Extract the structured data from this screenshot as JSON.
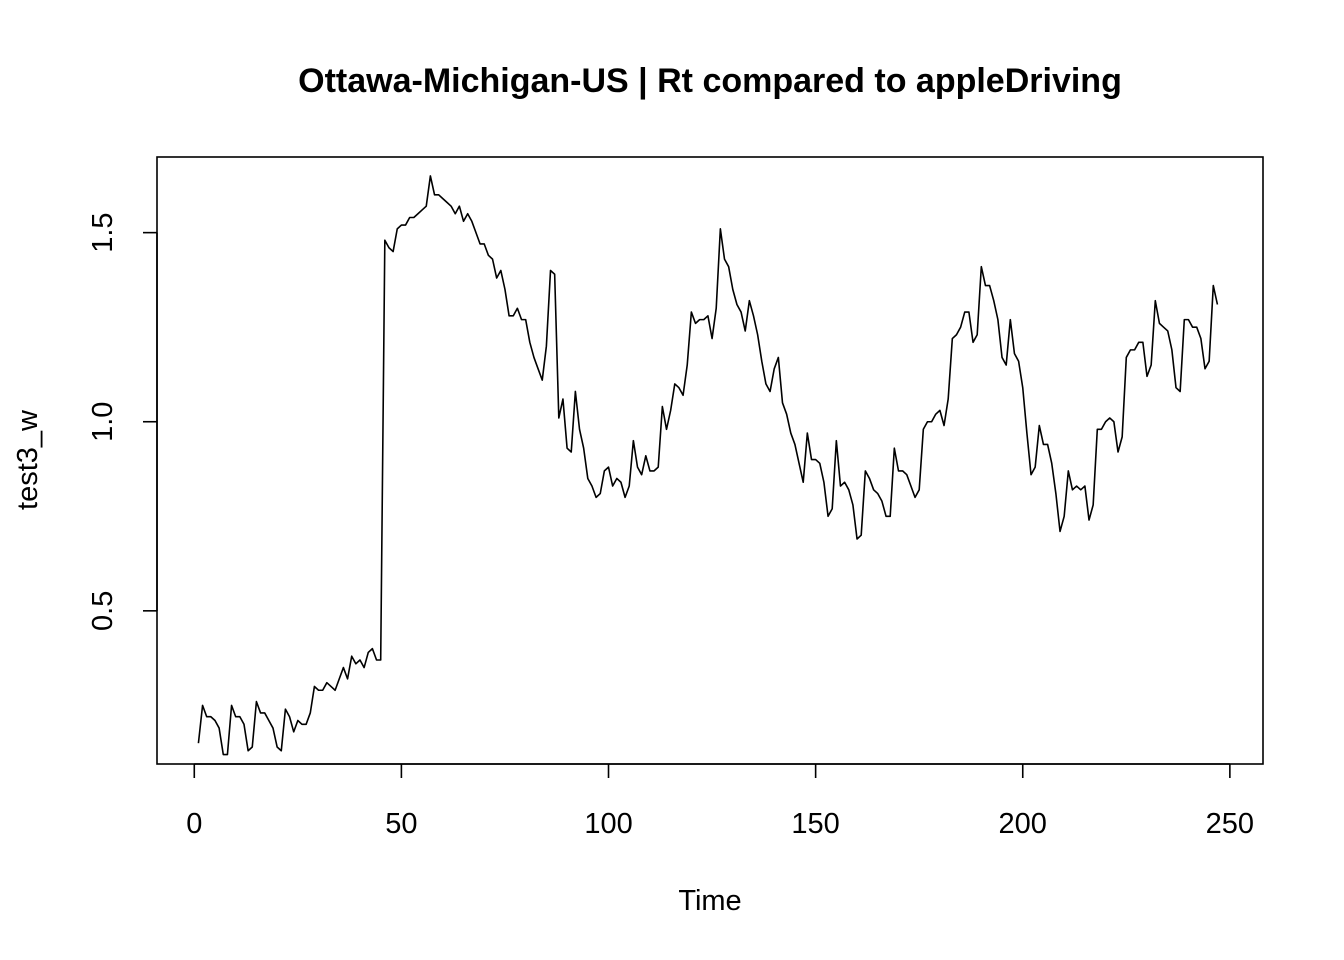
{
  "chart_data": {
    "type": "line",
    "title": "Ottawa-Michigan-US | Rt compared to appleDriving",
    "xlabel": "Time",
    "ylabel": "test3_w",
    "xlim": [
      -9,
      258
    ],
    "ylim": [
      0.095,
      1.7
    ],
    "x_ticks": [
      0,
      50,
      100,
      150,
      200,
      250
    ],
    "x_tick_labels": [
      "0",
      "50",
      "100",
      "150",
      "200",
      "250"
    ],
    "y_ticks": [
      0.5,
      1.0,
      1.5
    ],
    "y_tick_labels": [
      "0.5",
      "1.0",
      "1.5"
    ],
    "grid": false,
    "legend": "none",
    "line_color": "#000000",
    "series": [
      {
        "x_start": 1,
        "values": [
          0.15,
          0.25,
          0.22,
          0.22,
          0.21,
          0.19,
          0.12,
          0.12,
          0.25,
          0.22,
          0.22,
          0.2,
          0.13,
          0.14,
          0.26,
          0.23,
          0.23,
          0.21,
          0.19,
          0.14,
          0.13,
          0.24,
          0.22,
          0.18,
          0.21,
          0.2,
          0.2,
          0.23,
          0.3,
          0.29,
          0.29,
          0.31,
          0.3,
          0.29,
          0.32,
          0.35,
          0.32,
          0.38,
          0.36,
          0.37,
          0.35,
          0.39,
          0.4,
          0.37,
          0.37,
          1.48,
          1.46,
          1.45,
          1.51,
          1.52,
          1.52,
          1.54,
          1.54,
          1.55,
          1.56,
          1.57,
          1.65,
          1.6,
          1.6,
          1.59,
          1.58,
          1.57,
          1.55,
          1.57,
          1.53,
          1.55,
          1.53,
          1.5,
          1.47,
          1.47,
          1.44,
          1.43,
          1.38,
          1.4,
          1.35,
          1.28,
          1.28,
          1.3,
          1.27,
          1.27,
          1.21,
          1.17,
          1.14,
          1.11,
          1.2,
          1.4,
          1.39,
          1.01,
          1.06,
          0.93,
          0.92,
          1.08,
          0.98,
          0.93,
          0.85,
          0.83,
          0.8,
          0.81,
          0.87,
          0.88,
          0.83,
          0.85,
          0.84,
          0.8,
          0.83,
          0.95,
          0.88,
          0.86,
          0.91,
          0.87,
          0.87,
          0.88,
          1.04,
          0.98,
          1.03,
          1.1,
          1.09,
          1.07,
          1.15,
          1.29,
          1.26,
          1.27,
          1.27,
          1.28,
          1.22,
          1.3,
          1.51,
          1.43,
          1.41,
          1.35,
          1.31,
          1.29,
          1.24,
          1.32,
          1.28,
          1.23,
          1.16,
          1.1,
          1.08,
          1.14,
          1.17,
          1.05,
          1.02,
          0.97,
          0.94,
          0.89,
          0.84,
          0.97,
          0.9,
          0.9,
          0.89,
          0.84,
          0.75,
          0.77,
          0.95,
          0.83,
          0.84,
          0.82,
          0.78,
          0.69,
          0.7,
          0.87,
          0.85,
          0.82,
          0.81,
          0.79,
          0.75,
          0.75,
          0.93,
          0.87,
          0.87,
          0.86,
          0.83,
          0.8,
          0.82,
          0.98,
          1.0,
          1.0,
          1.02,
          1.03,
          0.99,
          1.06,
          1.22,
          1.23,
          1.25,
          1.29,
          1.29,
          1.21,
          1.23,
          1.41,
          1.36,
          1.36,
          1.32,
          1.27,
          1.17,
          1.15,
          1.27,
          1.18,
          1.16,
          1.09,
          0.97,
          0.86,
          0.88,
          0.99,
          0.94,
          0.94,
          0.89,
          0.81,
          0.71,
          0.75,
          0.87,
          0.82,
          0.83,
          0.82,
          0.83,
          0.74,
          0.78,
          0.98,
          0.98,
          1.0,
          1.01,
          1.0,
          0.92,
          0.96,
          1.17,
          1.19,
          1.19,
          1.21,
          1.21,
          1.12,
          1.15,
          1.32,
          1.26,
          1.25,
          1.24,
          1.19,
          1.09,
          1.08,
          1.27,
          1.27,
          1.25,
          1.25,
          1.22,
          1.14,
          1.16,
          1.36,
          1.31
        ]
      }
    ]
  }
}
